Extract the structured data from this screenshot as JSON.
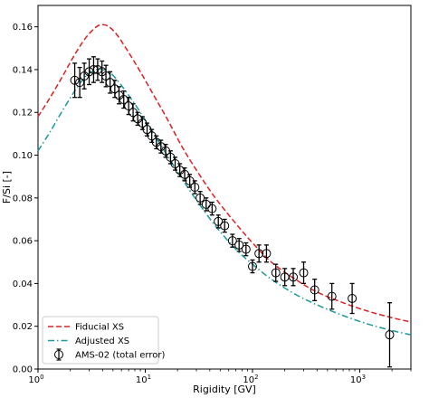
{
  "chart_data": {
    "type": "line",
    "xlabel": "Rigidity [GV]",
    "ylabel": "F/Si [-]",
    "xscale": "log",
    "xlim": [
      1,
      3000
    ],
    "ylim": [
      0,
      0.17
    ],
    "xticks": [
      {
        "value": 1,
        "label": "10",
        "sup": "0"
      },
      {
        "value": 10,
        "label": "10",
        "sup": "1"
      },
      {
        "value": 100,
        "label": "10",
        "sup": "2"
      },
      {
        "value": 1000,
        "label": "10",
        "sup": "3"
      }
    ],
    "yticks": [
      0.0,
      0.02,
      0.04,
      0.06,
      0.08,
      0.1,
      0.12,
      0.14,
      0.16
    ],
    "ytick_labels": [
      "0.00",
      "0.02",
      "0.04",
      "0.06",
      "0.08",
      "0.10",
      "0.12",
      "0.14",
      "0.16"
    ],
    "grid": false,
    "legend_position": "bottom-left",
    "series": [
      {
        "name": "Fiducial XS",
        "style": "dashed",
        "color": "#e02020",
        "x": [
          1,
          1.3,
          1.7,
          2.2,
          2.8,
          3.5,
          4.0,
          4.6,
          5.5,
          7,
          9,
          12,
          16,
          22,
          30,
          45,
          70,
          100,
          150,
          250,
          400,
          700,
          1200,
          2000,
          3000
        ],
        "y": [
          0.118,
          0.127,
          0.137,
          0.147,
          0.155,
          0.16,
          0.161,
          0.16,
          0.156,
          0.148,
          0.139,
          0.128,
          0.117,
          0.104,
          0.093,
          0.08,
          0.068,
          0.059,
          0.05,
          0.042,
          0.036,
          0.031,
          0.027,
          0.024,
          0.022
        ]
      },
      {
        "name": "Adjusted XS",
        "style": "dashdot",
        "color": "#1a9a9a",
        "x": [
          1,
          1.3,
          1.7,
          2.2,
          2.8,
          3.5,
          4.0,
          4.6,
          5.5,
          7,
          9,
          12,
          16,
          22,
          30,
          45,
          70,
          100,
          150,
          250,
          400,
          700,
          1200,
          2000,
          3000
        ],
        "y": [
          0.102,
          0.111,
          0.121,
          0.13,
          0.137,
          0.14,
          0.14,
          0.139,
          0.135,
          0.128,
          0.12,
          0.11,
          0.1,
          0.089,
          0.079,
          0.067,
          0.056,
          0.049,
          0.042,
          0.035,
          0.03,
          0.025,
          0.021,
          0.018,
          0.016
        ]
      },
      {
        "name": "AMS-02 (total error)",
        "style": "errorbar",
        "color": "#000000",
        "x": [
          2.2,
          2.45,
          2.7,
          3.0,
          3.3,
          3.6,
          3.95,
          4.3,
          4.7,
          5.2,
          5.7,
          6.3,
          7.0,
          7.7,
          8.5,
          9.4,
          10.4,
          11.5,
          12.7,
          14.0,
          15.5,
          17.2,
          19.0,
          21.0,
          23.3,
          26.0,
          29.0,
          32.5,
          37.0,
          42.0,
          48.0,
          55.0,
          65.0,
          75.0,
          87.0,
          100.0,
          115.0,
          135.0,
          165.0,
          200.0,
          240.0,
          300.0,
          380.0,
          550.0,
          850.0,
          1900.0
        ],
        "y": [
          0.135,
          0.134,
          0.137,
          0.139,
          0.14,
          0.14,
          0.139,
          0.137,
          0.134,
          0.131,
          0.128,
          0.126,
          0.123,
          0.12,
          0.117,
          0.115,
          0.112,
          0.109,
          0.106,
          0.104,
          0.102,
          0.099,
          0.096,
          0.093,
          0.091,
          0.088,
          0.085,
          0.08,
          0.077,
          0.075,
          0.069,
          0.067,
          0.06,
          0.058,
          0.056,
          0.048,
          0.054,
          0.054,
          0.045,
          0.043,
          0.043,
          0.045,
          0.037,
          0.034,
          0.033,
          0.016
        ],
        "yerr": [
          0.008,
          0.007,
          0.006,
          0.006,
          0.006,
          0.005,
          0.005,
          0.005,
          0.005,
          0.004,
          0.004,
          0.004,
          0.004,
          0.004,
          0.003,
          0.003,
          0.003,
          0.003,
          0.003,
          0.003,
          0.003,
          0.003,
          0.003,
          0.003,
          0.003,
          0.003,
          0.003,
          0.003,
          0.003,
          0.003,
          0.003,
          0.003,
          0.003,
          0.003,
          0.003,
          0.003,
          0.004,
          0.004,
          0.004,
          0.004,
          0.004,
          0.005,
          0.005,
          0.006,
          0.007,
          0.015
        ]
      }
    ]
  }
}
